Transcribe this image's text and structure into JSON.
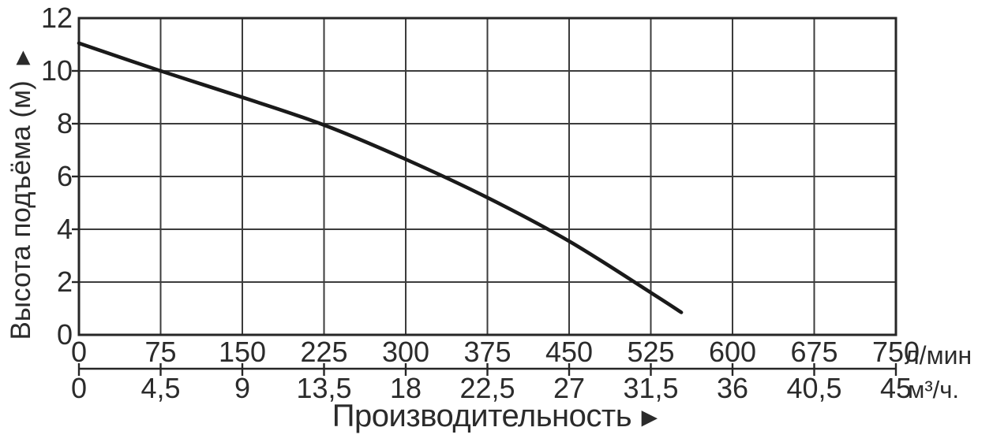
{
  "page": {
    "background": "#ffffff",
    "ink_color": "#2b2b2b",
    "grid_color": "#3c3c3c",
    "border_color": "#262626"
  },
  "chart_data": {
    "type": "line",
    "title": "",
    "grid": true,
    "legend": "none",
    "xlabel": "Производительность",
    "xlabel_arrow": "►",
    "y_axis": {
      "label": "Высота подъёма (м)",
      "label_arrow": "►",
      "ticks": [
        "12",
        "10",
        "8",
        "6",
        "4",
        "2",
        "0"
      ],
      "range": [
        0,
        12
      ]
    },
    "x_axis_lmin": {
      "unit": "л/мин",
      "ticks": [
        "0",
        "75",
        "150",
        "225",
        "300",
        "375",
        "450",
        "525",
        "600",
        "675",
        "750"
      ],
      "range": [
        0,
        750
      ]
    },
    "x_axis_m3h": {
      "unit": "м³/ч.",
      "ticks": [
        "0",
        "4,5",
        "9",
        "13,5",
        "18",
        "22,5",
        "27",
        "31,5",
        "36",
        "40,5",
        "45"
      ],
      "range": [
        0,
        45
      ]
    },
    "series": [
      {
        "name": "pump-head-curve",
        "color": "#1a1a1a",
        "points_lmin_m": [
          [
            0,
            11.05
          ],
          [
            75,
            10.0
          ],
          [
            150,
            9.0
          ],
          [
            225,
            7.95
          ],
          [
            300,
            6.65
          ],
          [
            375,
            5.2
          ],
          [
            450,
            3.55
          ],
          [
            525,
            1.6
          ],
          [
            553,
            0.85
          ]
        ]
      }
    ]
  }
}
